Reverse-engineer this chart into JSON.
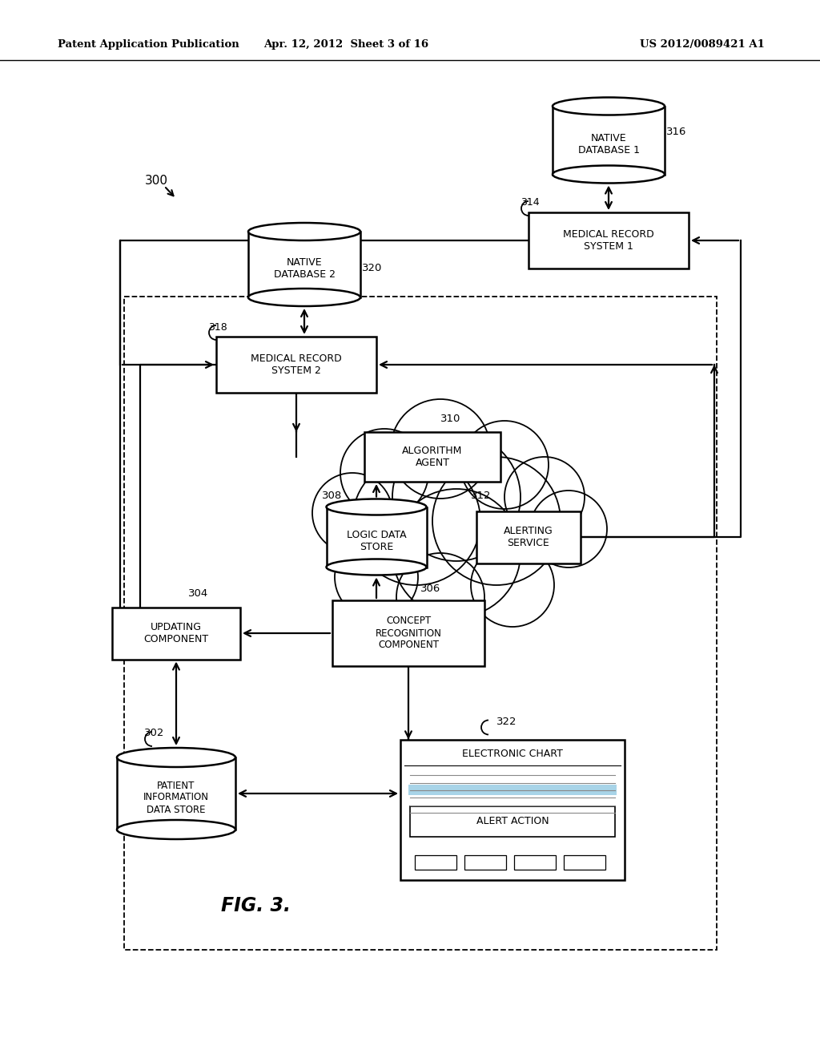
{
  "bg_color": "#ffffff",
  "header_left": "Patent Application Publication",
  "header_mid": "Apr. 12, 2012  Sheet 3 of 16",
  "header_right": "US 2012/0089421 A1",
  "fig_label": "FIG. 3."
}
